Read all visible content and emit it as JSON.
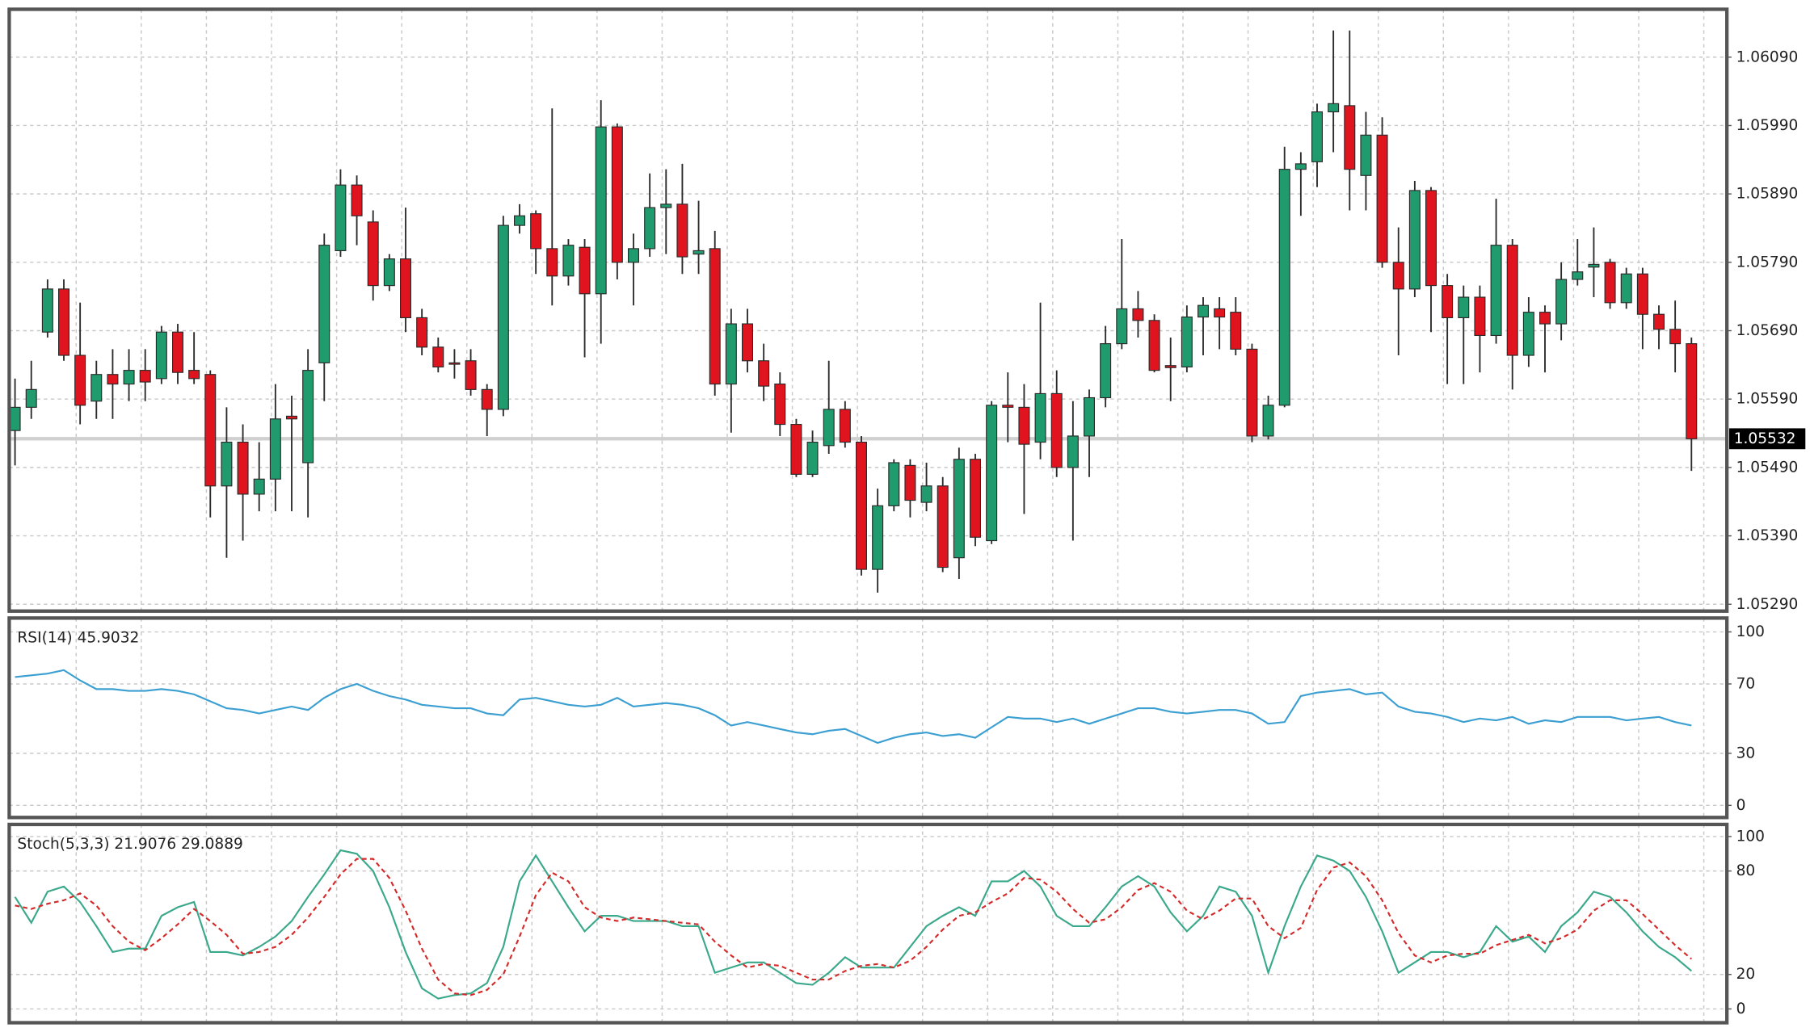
{
  "chart_data": [
    {
      "type": "candlestick",
      "open": [
        1.05544,
        1.05578,
        1.05688,
        1.05751,
        1.05654,
        1.05587,
        1.05626,
        1.05612,
        1.05632,
        1.0562,
        1.05688,
        1.05632,
        1.05626,
        1.05463,
        1.05527,
        1.05451,
        1.05473,
        1.05565,
        1.05497,
        1.05643,
        1.05807,
        1.05903,
        1.05849,
        1.05756,
        1.05795,
        1.05709,
        1.05666,
        1.05643,
        1.05646,
        1.05604,
        1.05575,
        1.05844,
        1.05861,
        1.0581,
        1.0577,
        1.05812,
        1.05744,
        1.05988,
        1.0579,
        1.0581,
        1.0587,
        1.05875,
        1.05802,
        1.0581,
        1.05612,
        1.057,
        1.05646,
        1.05612,
        1.05553,
        1.0548,
        1.05522,
        1.05575,
        1.05527,
        1.05341,
        1.05434,
        1.05493,
        1.05439,
        1.05463,
        1.05358,
        1.05502,
        1.05383,
        1.05581,
        1.05578,
        1.05527,
        1.05598,
        1.0549,
        1.05536,
        1.05592,
        1.05671,
        1.05722,
        1.05705,
        1.05639,
        1.05637,
        1.0571,
        1.05722,
        1.05717,
        1.05663,
        1.05536,
        1.05581,
        1.05926,
        1.05937,
        1.0601,
        1.06019,
        1.05917,
        1.05976,
        1.0579,
        1.05751,
        1.05895,
        1.05756,
        1.05709,
        1.05739,
        1.05683,
        1.05815,
        1.05654,
        1.05717,
        1.057,
        1.05765,
        1.05783,
        1.0579,
        1.05731,
        1.05773,
        1.05714,
        1.05692,
        1.05671
      ],
      "high": [
        1.0562,
        1.05646,
        1.05765,
        1.05765,
        1.05731,
        1.05646,
        1.05663,
        1.05663,
        1.05663,
        1.05697,
        1.057,
        1.05688,
        1.05632,
        1.05578,
        1.05553,
        1.05527,
        1.05612,
        1.05595,
        1.05663,
        1.05832,
        1.05926,
        1.05917,
        1.05866,
        1.05802,
        1.0587,
        1.05722,
        1.0568,
        1.05663,
        1.05663,
        1.05612,
        1.05858,
        1.05875,
        1.05866,
        1.06015,
        1.05824,
        1.05824,
        1.06027,
        1.05993,
        1.05832,
        1.0592,
        1.05926,
        1.05934,
        1.0588,
        1.05836,
        1.05722,
        1.05722,
        1.05671,
        1.05629,
        1.05561,
        1.05544,
        1.05646,
        1.05587,
        1.05536,
        1.05459,
        1.05502,
        1.05502,
        1.05497,
        1.05476,
        1.05519,
        1.0551,
        1.05587,
        1.05629,
        1.05612,
        1.05731,
        1.05632,
        1.05587,
        1.05604,
        1.05697,
        1.05824,
        1.05748,
        1.05714,
        1.0568,
        1.05727,
        1.05739,
        1.05739,
        1.05739,
        1.05671,
        1.05595,
        1.05959,
        1.05951,
        1.06022,
        1.06129,
        1.06129,
        1.0601,
        1.06002,
        1.05841,
        1.05909,
        1.059,
        1.05773,
        1.05756,
        1.05756,
        1.05883,
        1.05824,
        1.05739,
        1.05727,
        1.0579,
        1.05824,
        1.05841,
        1.05795,
        1.05782,
        1.05782,
        1.05727,
        1.05734,
        1.0568
      ],
      "low": [
        1.05493,
        1.05561,
        1.0568,
        1.05646,
        1.05553,
        1.05561,
        1.05561,
        1.05587,
        1.05587,
        1.05612,
        1.05612,
        1.05612,
        1.05417,
        1.05358,
        1.05383,
        1.05426,
        1.05426,
        1.05426,
        1.05417,
        1.05587,
        1.05798,
        1.05815,
        1.05734,
        1.05748,
        1.05688,
        1.05654,
        1.05629,
        1.0562,
        1.05595,
        1.05536,
        1.05565,
        1.05832,
        1.05773,
        1.05727,
        1.05756,
        1.05651,
        1.05671,
        1.05765,
        1.05727,
        1.05798,
        1.05802,
        1.05773,
        1.05773,
        1.05595,
        1.05541,
        1.05629,
        1.05587,
        1.05536,
        1.05476,
        1.05476,
        1.0551,
        1.05519,
        1.05332,
        1.05307,
        1.05426,
        1.05417,
        1.05426,
        1.05337,
        1.05327,
        1.05375,
        1.05378,
        1.05527,
        1.05422,
        1.05502,
        1.05476,
        1.05383,
        1.05476,
        1.05578,
        1.05663,
        1.0568,
        1.05629,
        1.05587,
        1.05629,
        1.05654,
        1.05663,
        1.05654,
        1.05527,
        1.05531,
        1.05578,
        1.05858,
        1.059,
        1.05951,
        1.05866,
        1.05866,
        1.05782,
        1.05654,
        1.05739,
        1.05688,
        1.05612,
        1.05612,
        1.05629,
        1.05671,
        1.05604,
        1.05637,
        1.05629,
        1.05676,
        1.05756,
        1.05739,
        1.05722,
        1.05722,
        1.05663,
        1.05663,
        1.05629,
        1.05485
      ],
      "close": [
        1.05578,
        1.05604,
        1.05751,
        1.05654,
        1.05581,
        1.05626,
        1.05612,
        1.05632,
        1.05615,
        1.05688,
        1.05629,
        1.0562,
        1.05463,
        1.05527,
        1.05451,
        1.05473,
        1.05561,
        1.05561,
        1.05632,
        1.05815,
        1.05903,
        1.05858,
        1.05756,
        1.05795,
        1.05709,
        1.05666,
        1.05637,
        1.05641,
        1.05604,
        1.05575,
        1.05844,
        1.05858,
        1.0581,
        1.0577,
        1.05815,
        1.05744,
        1.05988,
        1.0579,
        1.0581,
        1.0587,
        1.05875,
        1.05798,
        1.05807,
        1.05612,
        1.057,
        1.05646,
        1.05609,
        1.05553,
        1.0548,
        1.05527,
        1.05575,
        1.05527,
        1.05341,
        1.05434,
        1.05497,
        1.05442,
        1.05463,
        1.05344,
        1.05502,
        1.05388,
        1.05581,
        1.05578,
        1.05524,
        1.05598,
        1.0549,
        1.05536,
        1.05592,
        1.05671,
        1.05722,
        1.05705,
        1.05632,
        1.05636,
        1.0571,
        1.05727,
        1.0571,
        1.05663,
        1.05536,
        1.05581,
        1.05926,
        1.05934,
        1.0601,
        1.06022,
        1.05926,
        1.05976,
        1.0579,
        1.05751,
        1.05895,
        1.05756,
        1.05709,
        1.05739,
        1.05683,
        1.05815,
        1.05654,
        1.05717,
        1.057,
        1.05765,
        1.05776,
        1.05787,
        1.05731,
        1.05773,
        1.05714,
        1.05692,
        1.05671,
        1.05532
      ],
      "up_color": "#1f9b6e",
      "down_color": "#e0141e",
      "last_price": 1.05532,
      "ylim": [
        1.0528,
        1.0616
      ],
      "yticks": [
        {
          "value": 1.0529,
          "label": "1.05290"
        },
        {
          "value": 1.0539,
          "label": "1.05390"
        },
        {
          "value": 1.0549,
          "label": "1.05490"
        },
        {
          "value": 1.0559,
          "label": "1.05590"
        },
        {
          "value": 1.0569,
          "label": "1.05690"
        },
        {
          "value": 1.0579,
          "label": "1.05790"
        },
        {
          "value": 1.0589,
          "label": "1.05890"
        },
        {
          "value": 1.0599,
          "label": "1.05990"
        },
        {
          "value": 1.0609,
          "label": "1.06090"
        }
      ],
      "grid": true
    },
    {
      "type": "line",
      "title": "RSI(14) 45.9032",
      "color": "#3b9fd2",
      "values": [
        74,
        75,
        76,
        78,
        72,
        67,
        67,
        66,
        66,
        67,
        66,
        64,
        60,
        56,
        55,
        53,
        55,
        57,
        55,
        62,
        67,
        70,
        66,
        63,
        61,
        58,
        57,
        56,
        56,
        53,
        52,
        61,
        62,
        60,
        58,
        57,
        58,
        62,
        57,
        58,
        59,
        58,
        56,
        52,
        46,
        48,
        46,
        44,
        42,
        41,
        43,
        44,
        40,
        36,
        39,
        41,
        42,
        40,
        41,
        39,
        45,
        51,
        50,
        50,
        48,
        50,
        47,
        50,
        53,
        56,
        56,
        54,
        53,
        54,
        55,
        55,
        53,
        47,
        48,
        63,
        65,
        66,
        67,
        64,
        65,
        57,
        54,
        53,
        51,
        48,
        50,
        49,
        51,
        47,
        49,
        48,
        51,
        51,
        51,
        49,
        50,
        51,
        48,
        46
      ],
      "ylim": [
        -7,
        108
      ],
      "yticks": [
        0,
        30,
        70,
        100
      ],
      "grid": true
    },
    {
      "type": "line",
      "title": "Stoch(5,3,3) 21.9076 29.0889",
      "series": [
        {
          "color": "#3aa88a",
          "style": "solid",
          "values": [
            65,
            50,
            68,
            71,
            62,
            48,
            33,
            35,
            35,
            54,
            59,
            62,
            33,
            33,
            31,
            36,
            42,
            51,
            65,
            78,
            92,
            90,
            80,
            59,
            33,
            12,
            6,
            8,
            9,
            15,
            36,
            74,
            89,
            74,
            59,
            45,
            54,
            54,
            51,
            51,
            51,
            48,
            48,
            21,
            24,
            27,
            27,
            21,
            15,
            14,
            21,
            30,
            24,
            24,
            24,
            36,
            48,
            54,
            59,
            54,
            74,
            74,
            80,
            71,
            54,
            48,
            48,
            59,
            71,
            77,
            71,
            56,
            45,
            54,
            71,
            68,
            54,
            21,
            48,
            71,
            89,
            86,
            80,
            65,
            45,
            21,
            27,
            33,
            33,
            30,
            33,
            48,
            39,
            42,
            33,
            48,
            56,
            68,
            65,
            56,
            45,
            36,
            30,
            22
          ]
        },
        {
          "color": "#d42a2a",
          "style": "dashed",
          "values": [
            60,
            58,
            61,
            63,
            67,
            60,
            48,
            39,
            34,
            41,
            49,
            58,
            51,
            43,
            32,
            33,
            36,
            43,
            53,
            65,
            78,
            87,
            87,
            76,
            57,
            35,
            17,
            9,
            8,
            11,
            20,
            42,
            66,
            79,
            74,
            59,
            53,
            51,
            53,
            52,
            51,
            50,
            49,
            39,
            31,
            24,
            26,
            25,
            21,
            17,
            17,
            22,
            25,
            26,
            24,
            28,
            36,
            46,
            54,
            56,
            62,
            67,
            76,
            75,
            68,
            58,
            50,
            52,
            59,
            69,
            73,
            68,
            57,
            52,
            57,
            64,
            64,
            48,
            41,
            47,
            69,
            82,
            85,
            77,
            63,
            44,
            31,
            27,
            31,
            32,
            32,
            37,
            40,
            43,
            38,
            41,
            46,
            57,
            63,
            63,
            55,
            46,
            37,
            29
          ]
        }
      ],
      "ylim": [
        -8,
        107
      ],
      "yticks": [
        0,
        20,
        80,
        100
      ],
      "grid": true
    }
  ]
}
